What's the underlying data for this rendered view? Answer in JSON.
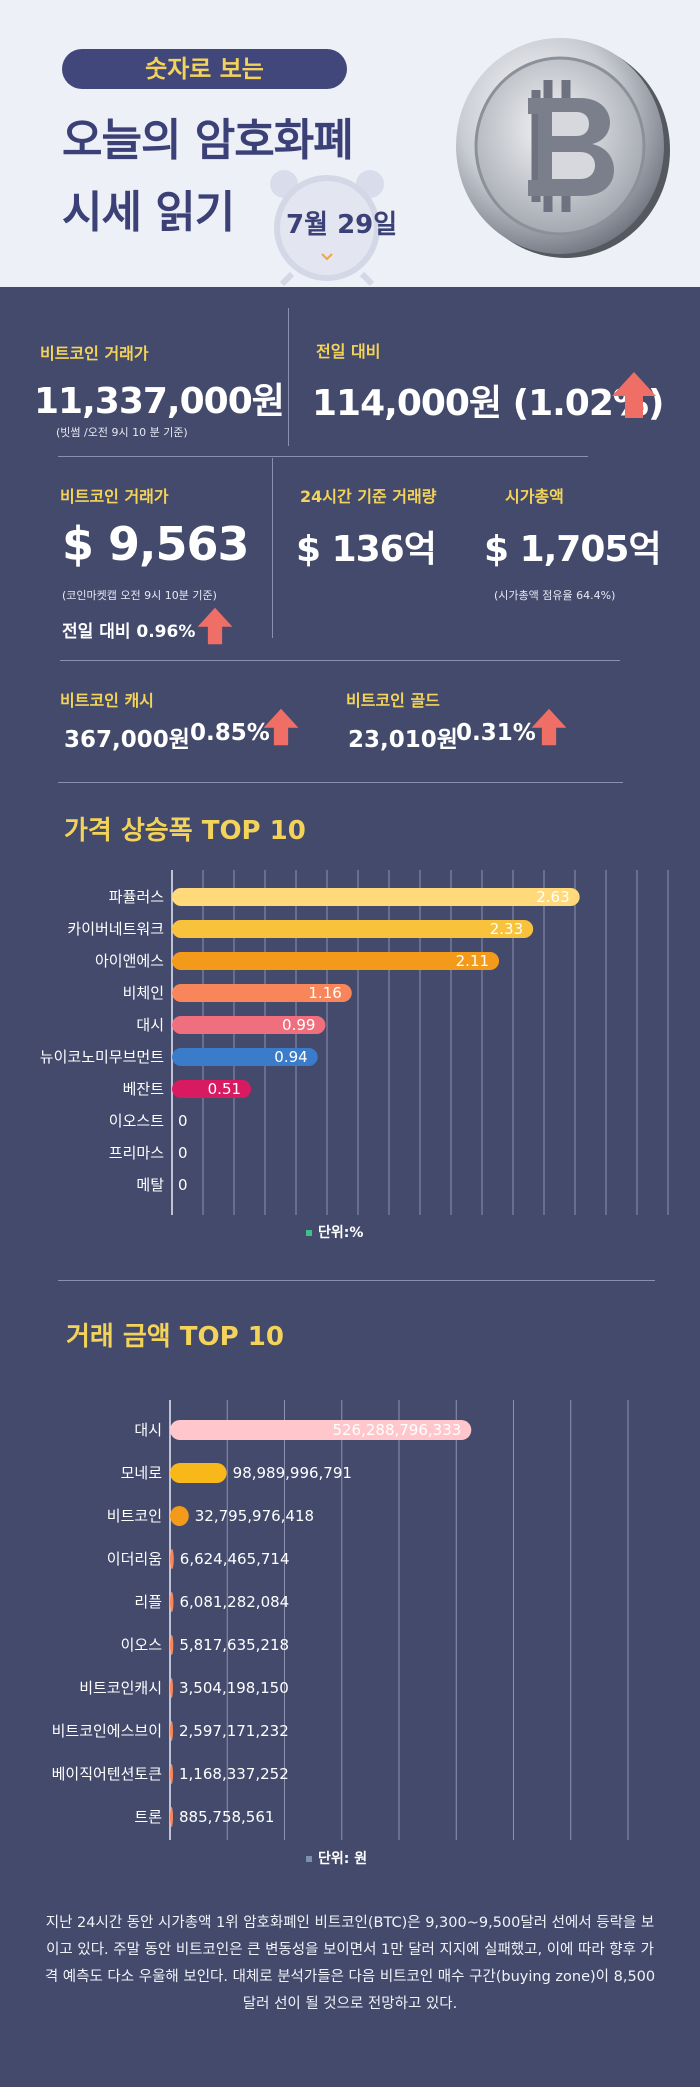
{
  "header": {
    "pill": "숫자로 보는",
    "title_line1": "오늘의 암호화폐",
    "title_line2": "시세 읽기",
    "date": "7월 29일"
  },
  "stats": {
    "krw": {
      "label": "비트코인 거래가",
      "value": "11,337,000원",
      "note": "(빗썸 /오전 9시 10 분 기준)"
    },
    "prev_day": {
      "label": "전일 대비",
      "value": "114,000원 (1.02%)"
    },
    "usd": {
      "label": "비트코인 거래가",
      "value": "$ 9,563",
      "note": "(코인마켓캡 오전 9시 10분 기준)",
      "change": "전일 대비 0.96%"
    },
    "volume": {
      "label": "24시간 기준 거래량",
      "value": "$ 136억"
    },
    "marketcap": {
      "label": "시가총액",
      "value": "$ 1,705억",
      "note": "(시가총액 점유율 64.4%)"
    },
    "bch": {
      "label": "비트코인 캐시",
      "value": "367,000원",
      "pct": "0.85%"
    },
    "btg": {
      "label": "비트코인 골드",
      "value": "23,010원",
      "pct": "0.31%"
    }
  },
  "colors": {
    "background": "#434a6b",
    "accent_yellow": "#f3d35a",
    "arrow": "#ef6f66"
  },
  "chart_data": [
    {
      "type": "bar",
      "orientation": "horizontal",
      "title": "가격 상승폭 TOP 10",
      "unit_label": "단위:%",
      "categories": [
        "파퓰러스",
        "카이버네트워크",
        "아이앤에스",
        "비체인",
        "대시",
        "뉴이코노미무브먼트",
        "베잔트",
        "이오스트",
        "프리마스",
        "메탈"
      ],
      "values": [
        2.63,
        2.33,
        2.11,
        1.16,
        0.99,
        0.94,
        0.51,
        0,
        0,
        0
      ],
      "labels": [
        "2.63",
        "2.33",
        "2.11",
        "1.16",
        "0.99",
        "0.94",
        "0.51",
        "0",
        "0",
        "0"
      ],
      "bar_colors": [
        "#ffd97a",
        "#f9c23c",
        "#f49a1a",
        "#f8865a",
        "#ef6f7e",
        "#3a7cc9",
        "#d81b60",
        "#ffffff",
        "#ffffff",
        "#ffffff"
      ],
      "xlim": [
        0,
        3.2
      ],
      "grid": true
    },
    {
      "type": "bar",
      "orientation": "horizontal",
      "title": "거래 금액 TOP 10",
      "unit_label": "단위: 원",
      "categories": [
        "대시",
        "모네로",
        "비트코인",
        "이더리움",
        "리플",
        "이오스",
        "비트코인캐시",
        "비트코인에스브이",
        "베이직어텐션토큰",
        "트론"
      ],
      "values": [
        526288796333,
        98989996791,
        32795976418,
        6624465714,
        6081282084,
        5817635218,
        3504198150,
        2597171232,
        1168337252,
        885758561
      ],
      "labels": [
        "526,288,796,333",
        "98,989,996,791",
        "32,795,976,418",
        "6,624,465,714",
        "6,081,282,084",
        "5,817,635,218",
        "3,504,198,150",
        "2,597,171,232",
        "1,168,337,252",
        "885,758,561"
      ],
      "bar_colors": [
        "#ffc6cc",
        "#f9b81a",
        "#f49a1a",
        "#f8865a",
        "#f8865a",
        "#f8865a",
        "#f8865a",
        "#f8865a",
        "#f8865a",
        "#f8865a"
      ],
      "xlim": [
        0,
        800000000000
      ],
      "grid": true
    }
  ],
  "footer": {
    "text": "지난 24시간 동안 시가총액 1위 암호화폐인 비트코인(BTC)은 9,300~9,500달러 선에서 등락을 보이고 있다. 주말 동안 비트코인은 큰 변동성을 보이면서 1만 달러 지지에 실패했고, 이에 따라 향후 가격 예측도 다소 우울해 보인다. 대체로 분석가들은 다음 비트코인 매수 구간(buying zone)이 8,500달러 선이 될 것으로 전망하고 있다."
  }
}
